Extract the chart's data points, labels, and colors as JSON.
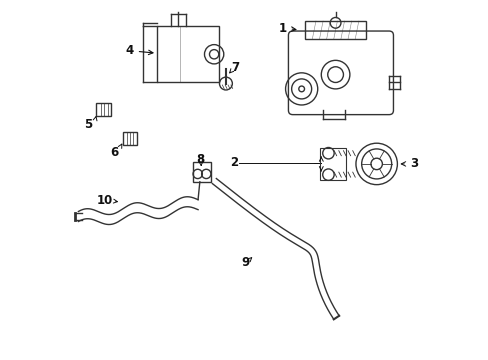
{
  "bg_color": "#ffffff",
  "line_color": "#333333",
  "text_color": "#111111",
  "figsize": [
    4.89,
    3.6
  ],
  "dpi": 100
}
